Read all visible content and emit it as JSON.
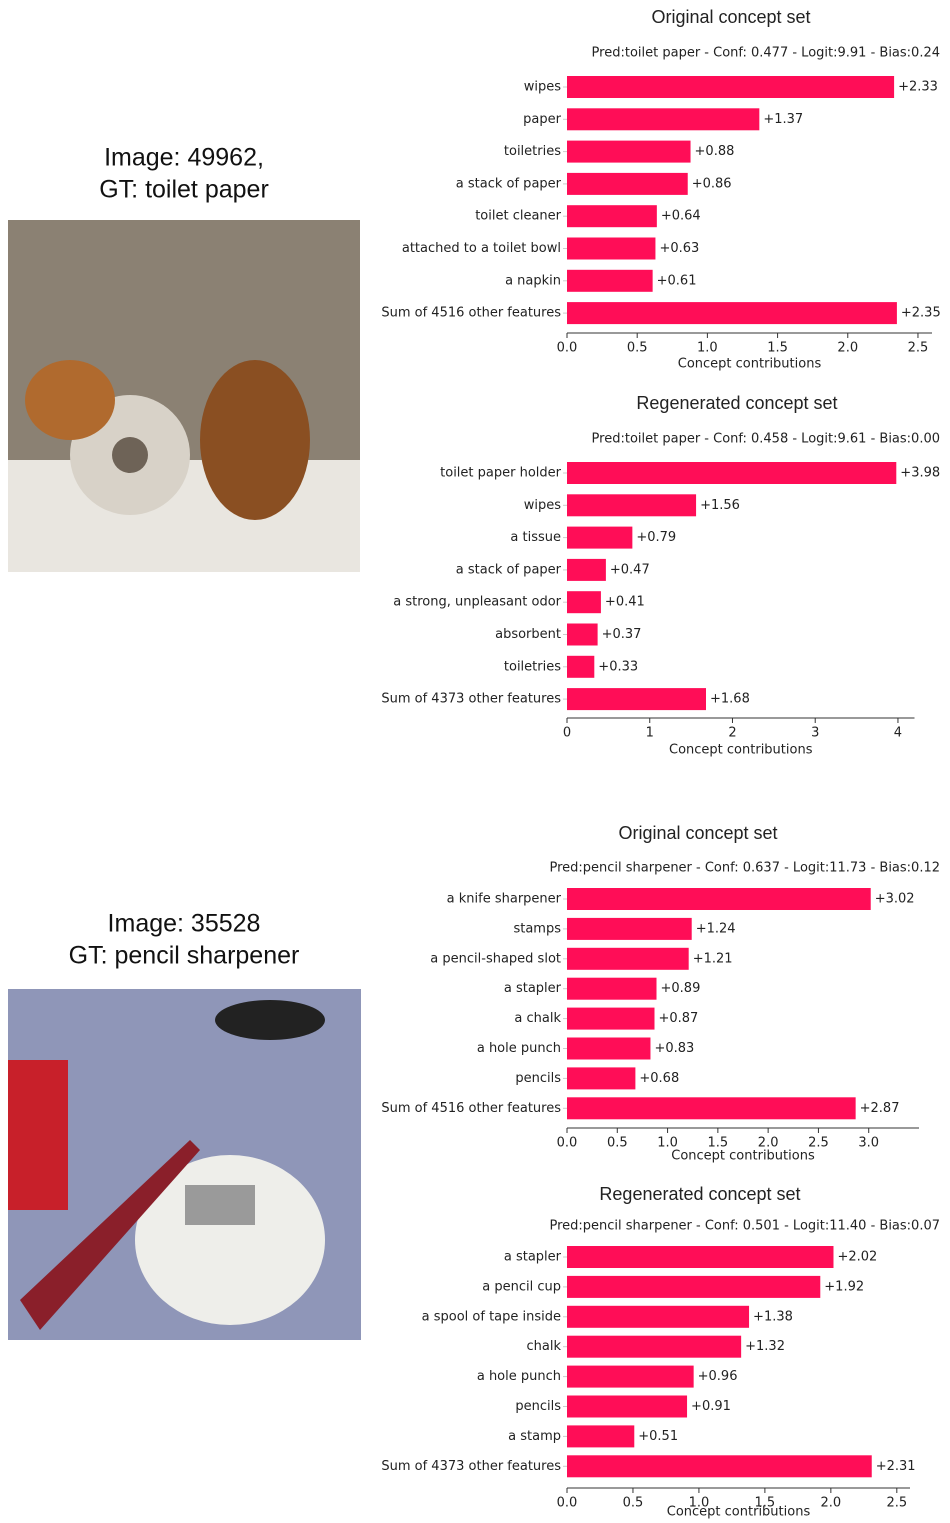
{
  "images": [
    {
      "caption": [
        "Image: 49962,",
        "GT: toilet paper"
      ]
    },
    {
      "caption": [
        "Image: 35528",
        "GT: pencil sharpener"
      ]
    }
  ],
  "chart_data": [
    {
      "type": "bar",
      "orientation": "horizontal",
      "title": "Original concept set",
      "subtitle": "Pred:toilet paper - Conf: 0.477 - Logit:9.91 - Bias:0.24",
      "x_label": "Concept contributions",
      "color": "#ff0d57",
      "categories": [
        "wipes",
        "paper",
        "toiletries",
        "a stack of paper",
        "toilet cleaner",
        "attached to a toilet bowl",
        "a napkin",
        "Sum of 4516 other features"
      ],
      "values": [
        2.33,
        1.37,
        0.88,
        0.86,
        0.64,
        0.63,
        0.61,
        2.35
      ],
      "value_labels": [
        "+2.33",
        "+1.37",
        "+0.88",
        "+0.86",
        "+0.64",
        "+0.63",
        "+0.61",
        "+2.35"
      ],
      "xlim": [
        0,
        2.6
      ],
      "xticks": [
        {
          "value": 0,
          "label": "0.0"
        },
        0.5,
        {
          "value": 1,
          "label": "1.0"
        },
        1.5,
        {
          "value": 2,
          "label": "2.0"
        },
        2.5
      ]
    },
    {
      "type": "bar",
      "orientation": "horizontal",
      "title": "Regenerated concept set",
      "subtitle": "Pred:toilet paper - Conf: 0.458 - Logit:9.61 - Bias:0.00",
      "x_label": "Concept contributions",
      "color": "#ff0d57",
      "categories": [
        "toilet paper holder",
        "wipes",
        "a tissue",
        "a stack of paper",
        "a strong, unpleasant odor",
        "absorbent",
        "toiletries",
        "Sum of 4373 other features"
      ],
      "values": [
        3.98,
        1.56,
        0.79,
        0.47,
        0.41,
        0.37,
        0.33,
        1.68
      ],
      "value_labels": [
        "+3.98",
        "+1.56",
        "+0.79",
        "+0.47",
        "+0.41",
        "+0.37",
        "+0.33",
        "+1.68"
      ],
      "xlim": [
        0,
        4.2
      ],
      "xticks": [
        0,
        1,
        2,
        3,
        4
      ]
    },
    {
      "type": "bar",
      "orientation": "horizontal",
      "title": "Original concept set",
      "subtitle": "Pred:pencil sharpener - Conf: 0.637 - Logit:11.73 - Bias:0.12",
      "x_label": "Concept contributions",
      "color": "#ff0d57",
      "categories": [
        "a knife sharpener",
        "stamps",
        "a pencil-shaped slot",
        "a stapler",
        "a chalk",
        "a hole punch",
        "pencils",
        "Sum of 4516 other features"
      ],
      "values": [
        3.02,
        1.24,
        1.21,
        0.89,
        0.87,
        0.83,
        0.68,
        2.87
      ],
      "value_labels": [
        "+3.02",
        "+1.24",
        "+1.21",
        "+0.89",
        "+0.87",
        "+0.83",
        "+0.68",
        "+2.87"
      ],
      "xlim": [
        0,
        3.5
      ],
      "xticks": [
        {
          "value": 0,
          "label": "0.0"
        },
        0.5,
        {
          "value": 1,
          "label": "1.0"
        },
        1.5,
        {
          "value": 2,
          "label": "2.0"
        },
        2.5,
        {
          "value": 3,
          "label": "3.0"
        }
      ]
    },
    {
      "type": "bar",
      "orientation": "horizontal",
      "title": "Regenerated concept set",
      "subtitle": "Pred:pencil sharpener - Conf: 0.501 - Logit:11.40 - Bias:0.07",
      "x_label": "Concept contributions",
      "color": "#ff0d57",
      "categories": [
        "a stapler",
        "a pencil cup",
        "a spool of tape inside",
        "chalk",
        "a hole punch",
        "pencils",
        "a stamp",
        "Sum of 4373 other features"
      ],
      "values": [
        2.02,
        1.92,
        1.38,
        1.32,
        0.96,
        0.91,
        0.51,
        2.31
      ],
      "value_labels": [
        "+2.02",
        "+1.92",
        "+1.38",
        "+1.32",
        "+0.96",
        "+0.91",
        "+0.51",
        "+2.31"
      ],
      "xlim": [
        0,
        2.6
      ],
      "xticks": [
        {
          "value": 0,
          "label": "0.0"
        },
        0.5,
        {
          "value": 1,
          "label": "1.0"
        },
        1.5,
        {
          "value": 2,
          "label": "2.0"
        },
        2.5
      ]
    }
  ]
}
